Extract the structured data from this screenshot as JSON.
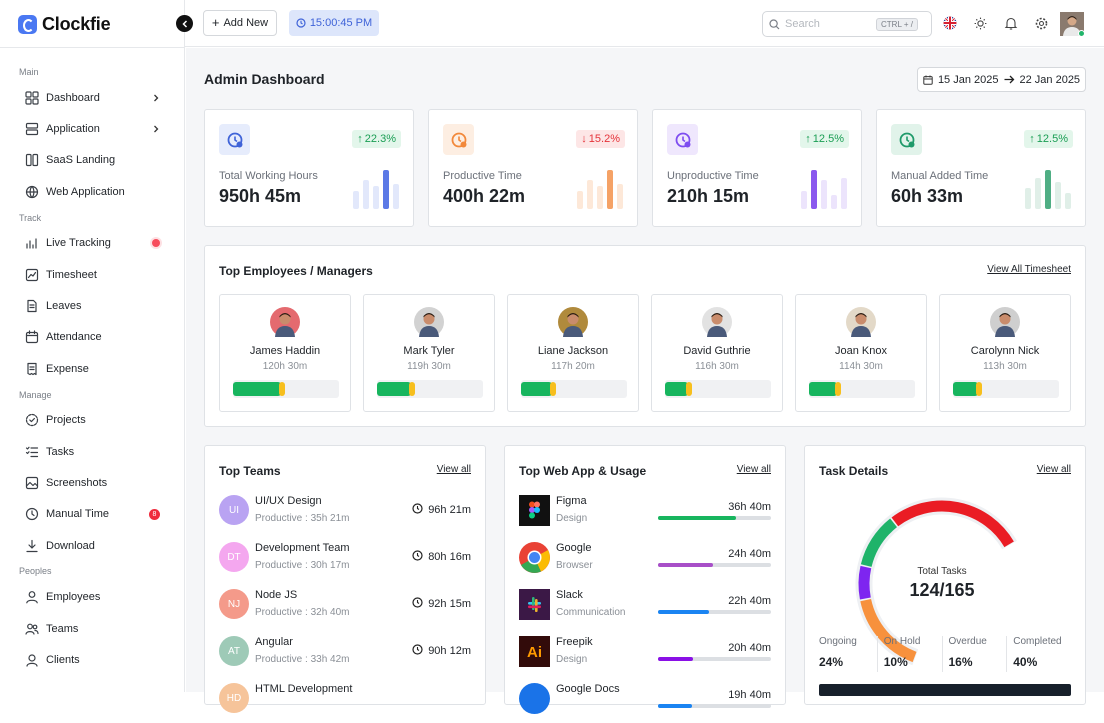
{
  "app": {
    "name": "Clockfie"
  },
  "topbar": {
    "add_new": "Add New",
    "clock": "15:00:45 PM",
    "search_placeholder": "Search",
    "shortcut": "CTRL + /"
  },
  "sidebar": {
    "sections": [
      {
        "title": "Main",
        "items": [
          {
            "label": "Dashboard",
            "icon": "grid-icon",
            "chevron": true
          },
          {
            "label": "Application",
            "icon": "server-icon",
            "chevron": true
          },
          {
            "label": "SaaS Landing",
            "icon": "layout-icon"
          },
          {
            "label": "Web Application",
            "icon": "globe-icon"
          }
        ]
      },
      {
        "title": "Track",
        "items": [
          {
            "label": "Live Tracking",
            "icon": "activity-icon",
            "live": true
          },
          {
            "label": "Timesheet",
            "icon": "chart-icon"
          },
          {
            "label": "Leaves",
            "icon": "file-icon"
          },
          {
            "label": "Attendance",
            "icon": "calendar-icon"
          },
          {
            "label": "Expense",
            "icon": "receipt-icon"
          }
        ]
      },
      {
        "title": "Manage",
        "items": [
          {
            "label": "Projects",
            "icon": "target-icon"
          },
          {
            "label": "Tasks",
            "icon": "tasks-icon"
          },
          {
            "label": "Screenshots",
            "icon": "image-icon"
          },
          {
            "label": "Manual Time",
            "icon": "clock-icon",
            "badge": "8"
          },
          {
            "label": "Download",
            "icon": "download-icon"
          }
        ]
      },
      {
        "title": "Peoples",
        "items": [
          {
            "label": "Employees",
            "icon": "user-icon"
          },
          {
            "label": "Teams",
            "icon": "users-icon"
          },
          {
            "label": "Clients",
            "icon": "client-icon"
          }
        ]
      }
    ]
  },
  "page": {
    "title": "Admin Dashboard",
    "date_from": "15 Jan 2025",
    "date_to": "22 Jan 2025"
  },
  "stats": [
    {
      "label": "Total Working Hours",
      "value": "950h 45m",
      "change": "22.3%",
      "direction": "up",
      "color": "#3f63d8",
      "bg": "#e6ecfc",
      "bar_color": "#5b79e6",
      "bar_light": "#e2e8fb",
      "bars": [
        0.45,
        0.7,
        0.55,
        0.95,
        0.6
      ]
    },
    {
      "label": "Productive Time",
      "value": "400h 22m",
      "change": "15.2%",
      "direction": "down",
      "color": "#f2883a",
      "bg": "#fdeee2",
      "bar_color": "#f5a266",
      "bar_light": "#fde8d8",
      "bars": [
        0.45,
        0.7,
        0.55,
        0.95,
        0.6
      ]
    },
    {
      "label": "Unproductive Time",
      "value": "210h 15m",
      "change": "12.5%",
      "direction": "up",
      "color": "#7e4df0",
      "bg": "#efe7fd",
      "bar_color": "#8a58ee",
      "bar_light": "#ece4fc",
      "bars": [
        0.45,
        0.95,
        0.7,
        0.35,
        0.75
      ]
    },
    {
      "label": "Manual Added Time",
      "value": "60h 33m",
      "change": "12.5%",
      "direction": "up",
      "color": "#1f9a6a",
      "bg": "#e1f3ea",
      "bar_color": "#4fae84",
      "bar_light": "#e0efe8",
      "bars": [
        0.5,
        0.75,
        0.95,
        0.65,
        0.4
      ]
    }
  ],
  "employees": {
    "title": "Top Employees / Managers",
    "link": "View All Timesheet",
    "items": [
      {
        "name": "James Haddin",
        "hours": "120h 30m",
        "progress": 0.45,
        "avatar_bg": "#e46a6f"
      },
      {
        "name": "Mark Tyler",
        "hours": "119h 30m",
        "progress": 0.32,
        "avatar_bg": "#d2d2d2"
      },
      {
        "name": "Liane Jackson",
        "hours": "117h 20m",
        "progress": 0.29,
        "avatar_bg": "#b08a3c"
      },
      {
        "name": "David Guthrie",
        "hours": "116h 30m",
        "progress": 0.22,
        "avatar_bg": "#e2e2e2"
      },
      {
        "name": "Joan Knox",
        "hours": "114h 30m",
        "progress": 0.26,
        "avatar_bg": "#e3d9c8"
      },
      {
        "name": "Carolynn Nick",
        "hours": "113h 30m",
        "progress": 0.24,
        "avatar_bg": "#cfcfcf"
      }
    ]
  },
  "teams": {
    "title": "Top Teams",
    "link": "View all",
    "items": [
      {
        "initials": "UI",
        "name": "UI/UX Design",
        "productive": "Productive : 35h 21m",
        "time": "96h 21m",
        "color": "#b9a3f2"
      },
      {
        "initials": "DT",
        "name": "Development Team",
        "productive": "Productive : 30h 17m",
        "time": "80h 16m",
        "color": "#f4a7ef"
      },
      {
        "initials": "NJ",
        "name": "Node JS",
        "productive": "Productive : 32h 40m",
        "time": "92h 15m",
        "color": "#f49a8a"
      },
      {
        "initials": "AT",
        "name": "Angular",
        "productive": "Productive : 33h 42m",
        "time": "90h 12m",
        "color": "#9ecab7"
      },
      {
        "initials": "HD",
        "name": "HTML Development",
        "productive": "",
        "time": "",
        "color": "#f6c49a"
      }
    ]
  },
  "apps": {
    "title": "Top Web App & Usage",
    "link": "View all",
    "items": [
      {
        "name": "Figma",
        "category": "Design",
        "time": "36h 40m",
        "usage": 0.69,
        "color": "#17b55e",
        "icon": "figma-icon"
      },
      {
        "name": "Google",
        "category": "Browser",
        "time": "24h 40m",
        "usage": 0.49,
        "color": "#a84fc8",
        "icon": "chrome-icon"
      },
      {
        "name": "Slack",
        "category": "Communication",
        "time": "22h 40m",
        "usage": 0.45,
        "color": "#1a84f2",
        "icon": "slack-icon"
      },
      {
        "name": "Freepik",
        "category": "Design",
        "time": "20h 40m",
        "usage": 0.31,
        "color": "#8a10e6",
        "icon": "freepik-icon"
      },
      {
        "name": "Google Docs",
        "category": "",
        "time": "19h 40m",
        "usage": 0.3,
        "color": "#1a84f2",
        "icon": "docs-icon"
      }
    ]
  },
  "tasks": {
    "title": "Task Details",
    "link": "View all",
    "total_label": "Total Tasks",
    "total_value": "124/165",
    "segments": [
      {
        "label": "Ongoing",
        "value": "24%",
        "pct": 24,
        "color": "#f7913d"
      },
      {
        "label": "On Hold",
        "value": "10%",
        "pct": 10,
        "color": "#7e25f0"
      },
      {
        "label": "Overdue",
        "value": "16%",
        "pct": 16,
        "color": "#1fb36a"
      },
      {
        "label": "Completed",
        "value": "40%",
        "pct": 40,
        "color": "#ea1c24"
      }
    ]
  }
}
